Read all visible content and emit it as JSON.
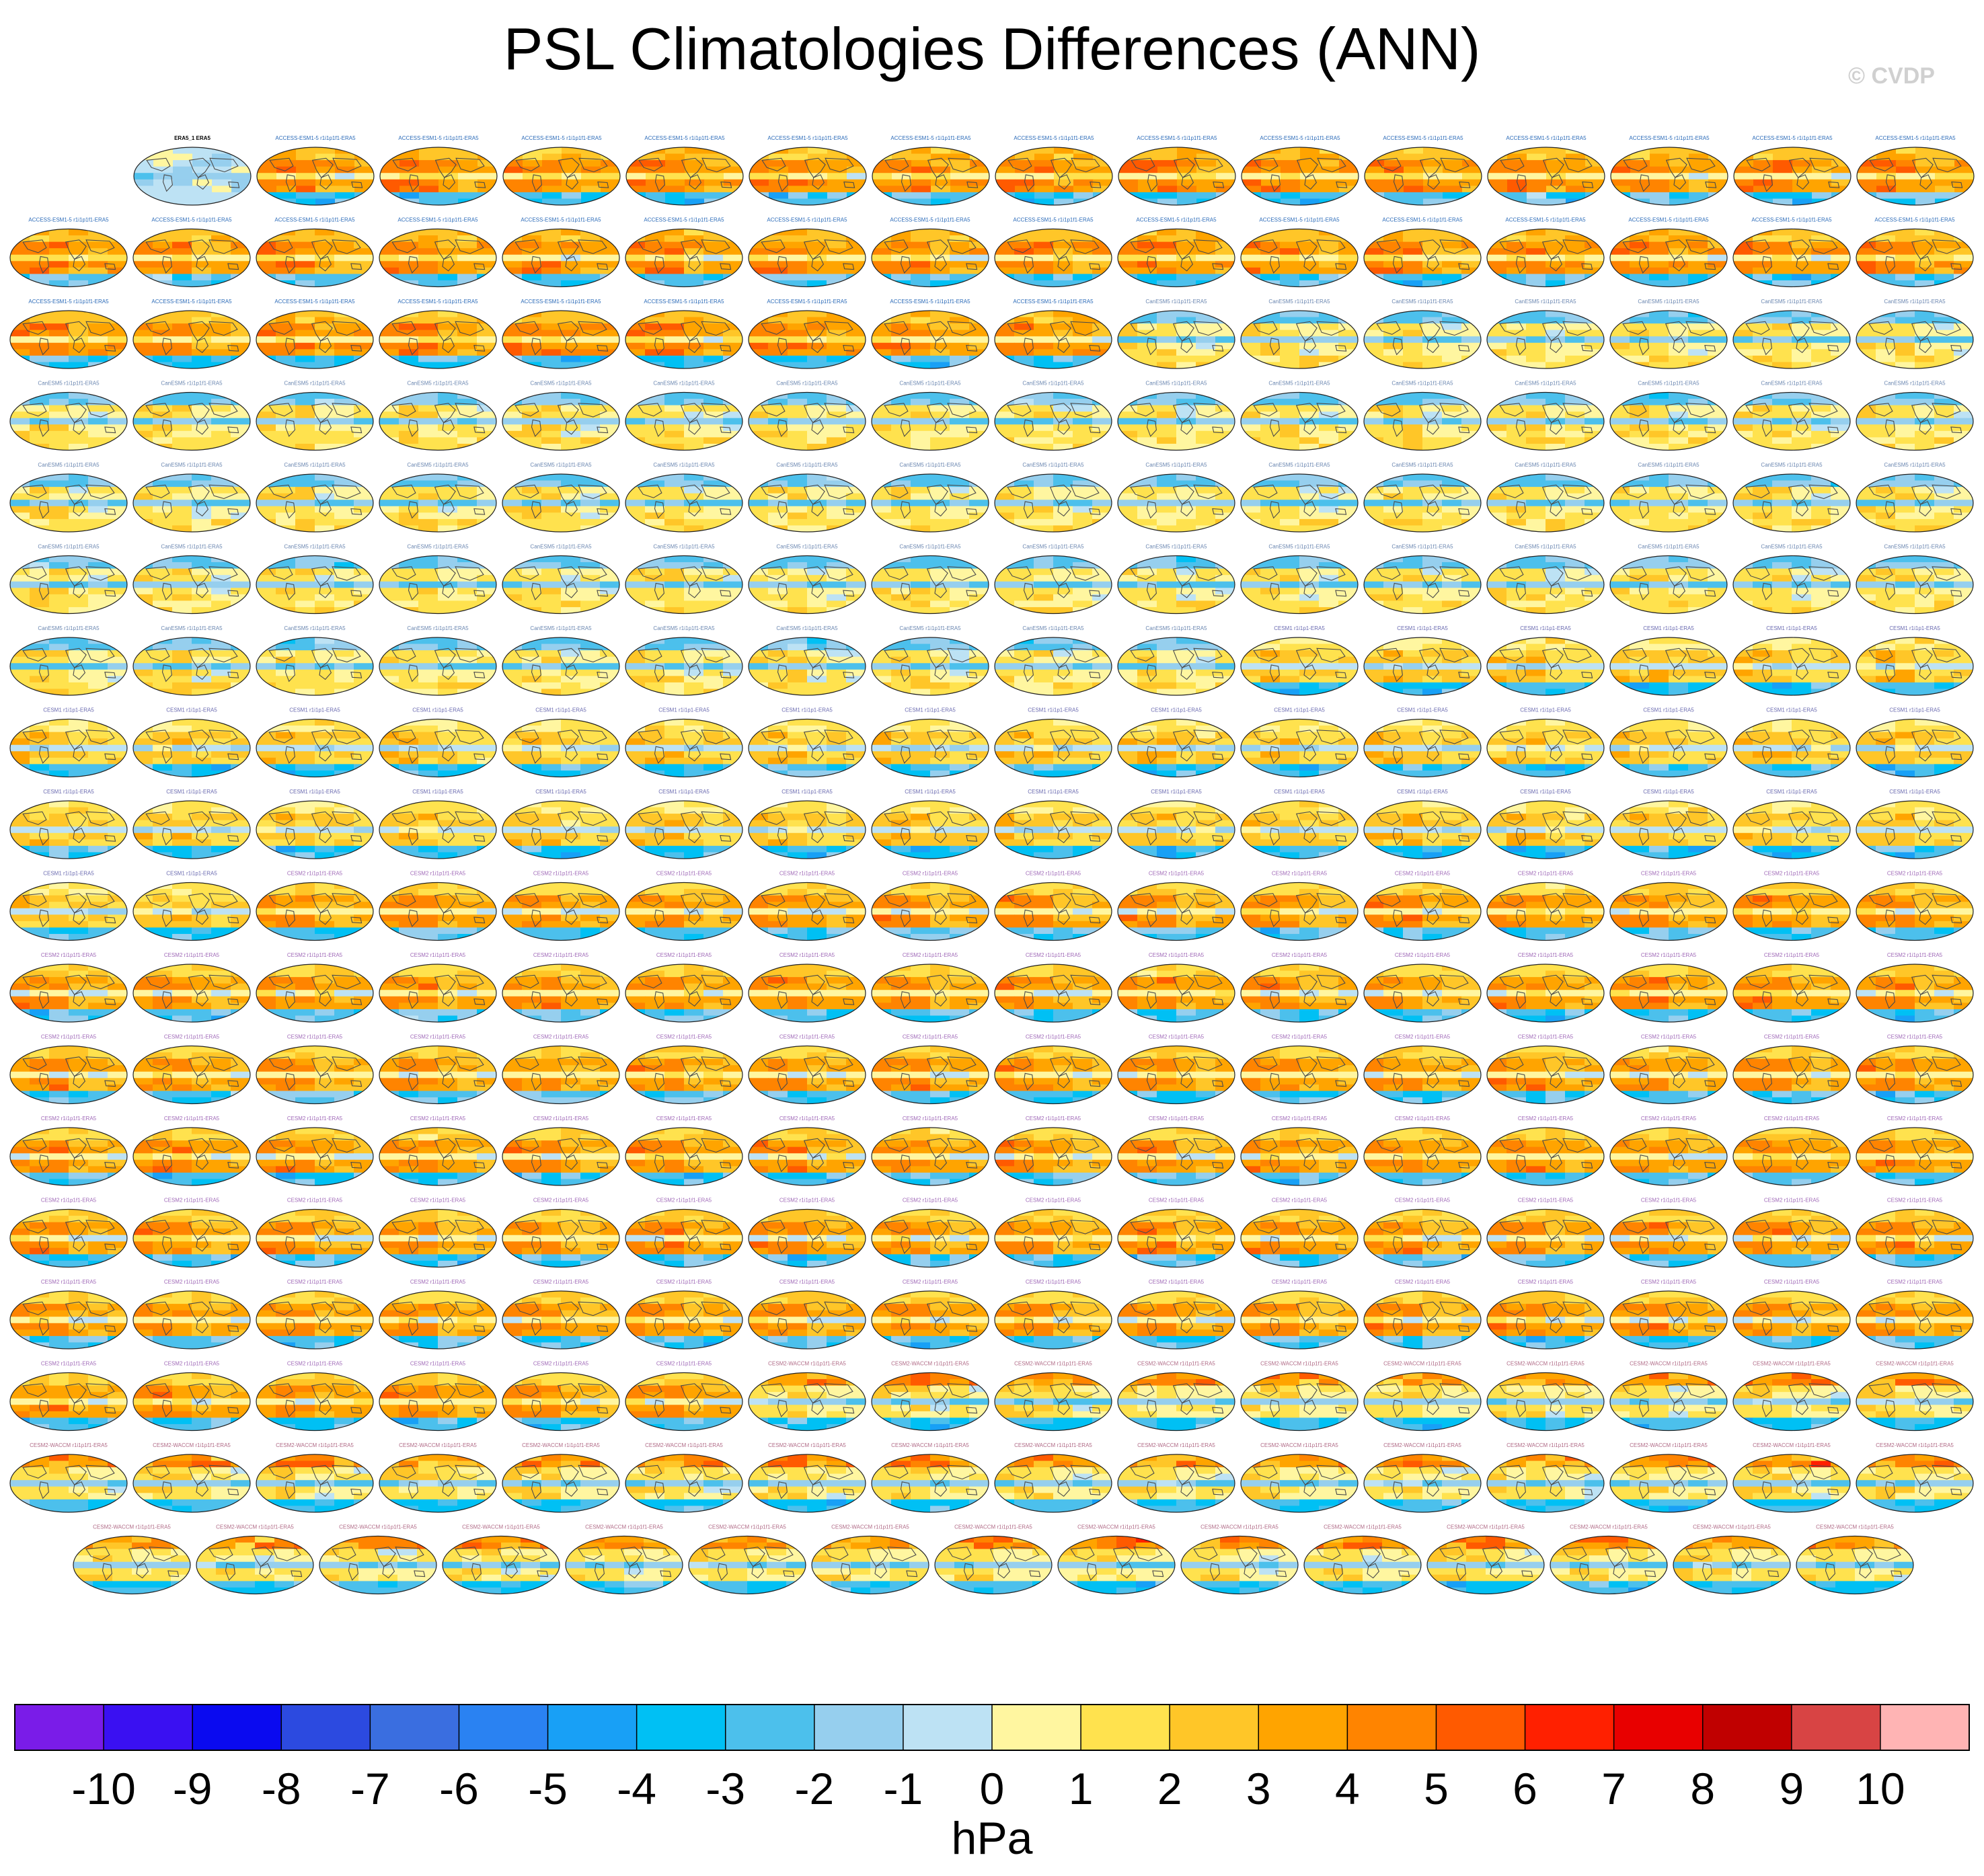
{
  "title": "PSL Climatologies Differences (ANN)",
  "watermark": "© CVDP",
  "colorbar_unit": "hPa",
  "chart_data": {
    "type": "heatmap",
    "title": "PSL Climatologies Differences (ANN)",
    "variable": "PSL",
    "season": "ANN",
    "units": "hPa",
    "panel_rows": [
      15,
      16,
      16,
      16,
      16,
      16,
      16,
      16,
      16,
      16,
      16,
      16,
      16,
      16,
      16,
      16,
      16,
      15
    ],
    "panels": [
      {
        "label": "ERA5_1 ERA5",
        "family": "reference"
      },
      {
        "label": "ACCESS-ESM1-5 r1i1p1f1-ERA5",
        "family": "ACCESS-ESM1-5",
        "count": 39
      },
      {
        "label": "CanESM5 r1i1p1f1-ERA5",
        "family": "CanESM5",
        "count": 65
      },
      {
        "label": "CESM1 r1i1p1-ERA5",
        "family": "CESM1",
        "count": 40
      },
      {
        "label": "CESM2 r1i1p1f1-ERA5",
        "family": "CESM2",
        "count": 100
      },
      {
        "label": "CESM2-WACCM r1i1p1f1-ERA5",
        "family": "CESM2-WACCM",
        "count": 42
      }
    ],
    "colorbar": {
      "levels": [
        -10,
        -9,
        -8,
        -7,
        -6,
        -5,
        -4,
        -3,
        -2,
        -1,
        0,
        1,
        2,
        3,
        4,
        5,
        6,
        7,
        8,
        9,
        10
      ],
      "tick_labels": [
        "-10",
        "-9",
        "-8",
        "-7",
        "-6",
        "-5",
        "-4",
        "-3",
        "-2",
        "-1",
        "0",
        "1",
        "2",
        "3",
        "4",
        "5",
        "6",
        "7",
        "8",
        "9",
        "10"
      ],
      "colors": [
        "#7a1ce8",
        "#3a10f2",
        "#0a0af0",
        "#2c4ae0",
        "#3a6ee0",
        "#2a82f2",
        "#18a0f6",
        "#00c0f4",
        "#4cc0ec",
        "#96cfee",
        "#bde2f4",
        "#fff6a0",
        "#ffe24e",
        "#ffc628",
        "#ffa400",
        "#ff8400",
        "#ff5a00",
        "#ff2000",
        "#e80000",
        "#c00000",
        "#d84444",
        "#ffb4b4"
      ]
    }
  }
}
